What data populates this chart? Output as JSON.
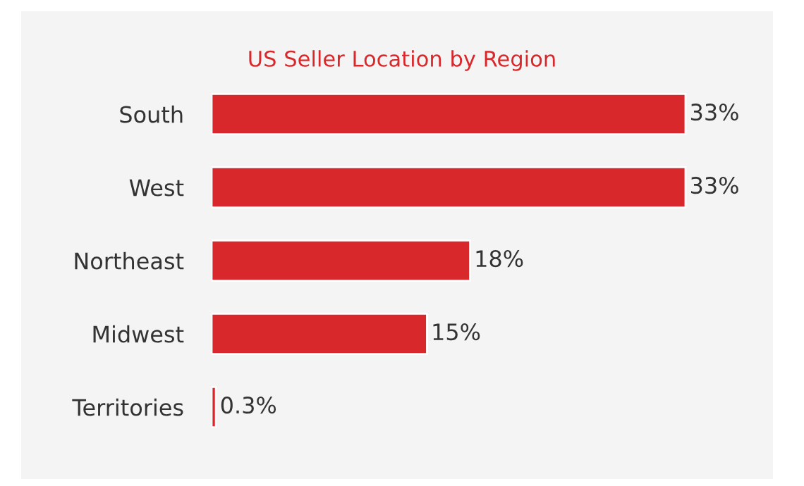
{
  "chart_data": {
    "type": "bar",
    "orientation": "horizontal",
    "title": "US Seller Location by Region",
    "categories": [
      "South",
      "West",
      "Northeast",
      "Midwest",
      "Territories"
    ],
    "values": [
      33,
      33,
      18,
      15,
      0.3
    ],
    "value_labels": [
      "33%",
      "33%",
      "18%",
      "15%",
      "0.3%"
    ],
    "color": "#d9282b",
    "grid": false,
    "legend": false
  }
}
